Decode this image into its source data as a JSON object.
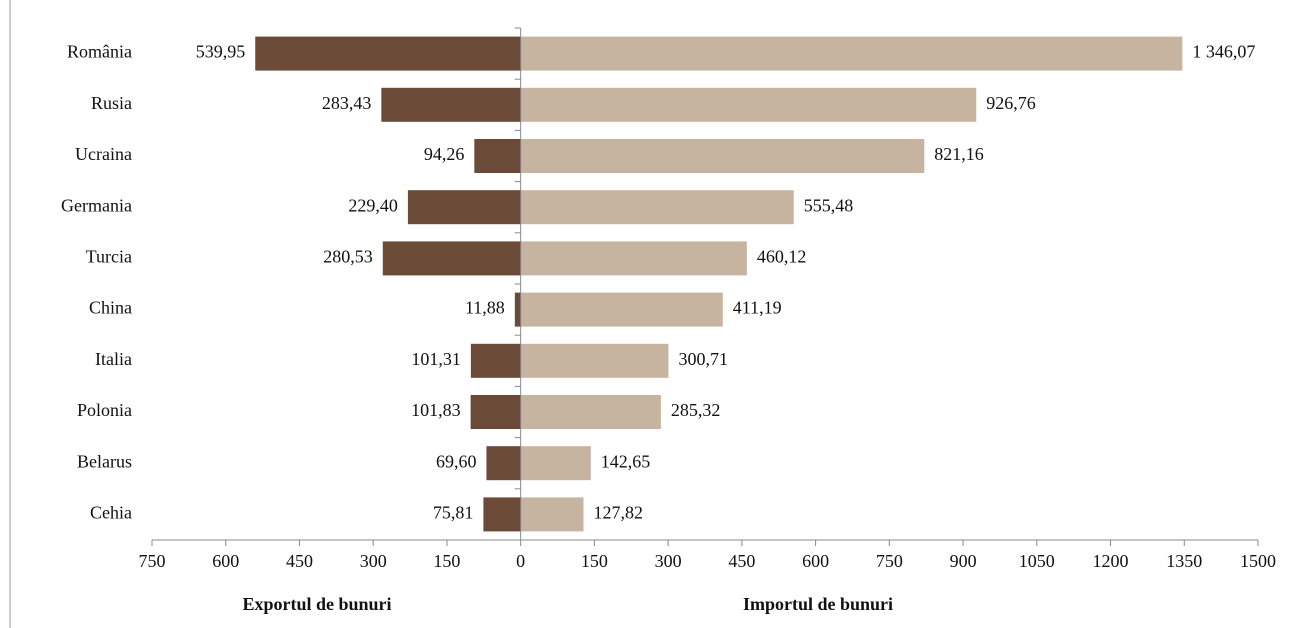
{
  "chart_data": {
    "type": "butterfly-bar",
    "categories": [
      "România",
      "Rusia",
      "Ucraina",
      "Germania",
      "Turcia",
      "China",
      "Italia",
      "Polonia",
      "Belarus",
      "Cehia"
    ],
    "series": [
      {
        "name": "Exportul de bunuri",
        "color": "#6b4a37",
        "side": "left",
        "values": [
          539.95,
          283.43,
          94.26,
          229.4,
          280.53,
          11.88,
          101.31,
          101.83,
          69.6,
          75.81
        ],
        "value_labels": [
          "539,95",
          "283,43",
          "94,26",
          "229,40",
          "280,53",
          "11,88",
          "101,31",
          "101,83",
          "69,60",
          "75,81"
        ]
      },
      {
        "name": "Importul de bunuri",
        "color": "#c6b4a1",
        "side": "right",
        "values": [
          1346.07,
          926.76,
          821.16,
          555.48,
          460.12,
          411.19,
          300.71,
          285.32,
          142.65,
          127.82
        ],
        "value_labels": [
          "1 346,07",
          "926,76",
          "821,16",
          "555,48",
          "460,12",
          "411,19",
          "300,71",
          "285,32",
          "142,65",
          "127,82"
        ]
      }
    ],
    "xlim": [
      -750,
      1500
    ],
    "xticks": [
      {
        "value": -750,
        "label": "750"
      },
      {
        "value": -600,
        "label": "600"
      },
      {
        "value": -450,
        "label": "450"
      },
      {
        "value": -300,
        "label": "300"
      },
      {
        "value": -150,
        "label": "150"
      },
      0,
      150,
      300,
      450,
      600,
      750,
      900,
      1050,
      1200,
      1350,
      1500
    ]
  }
}
